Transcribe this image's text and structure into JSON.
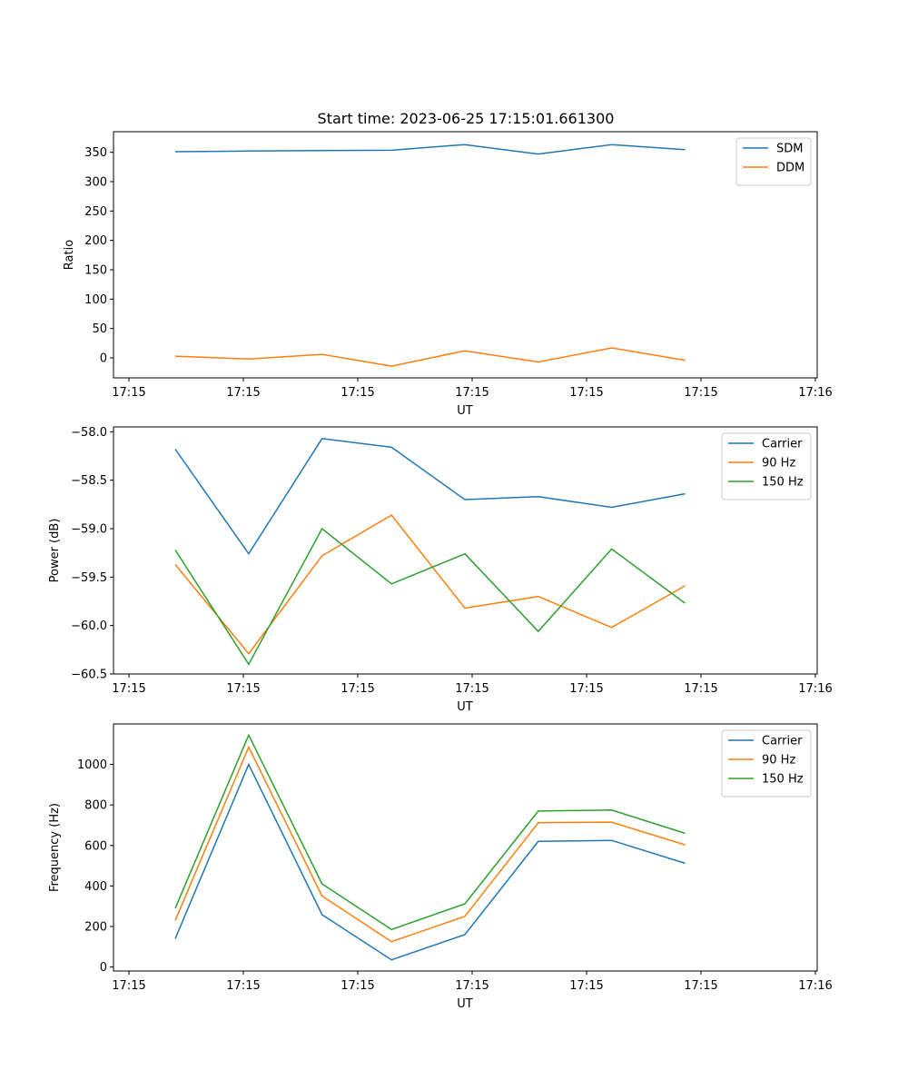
{
  "figure": {
    "title": "Start time: 2023-06-25 17:15:01.661300"
  },
  "chart_data": [
    {
      "type": "line",
      "title": "Start time: 2023-06-25 17:15:01.661300",
      "xlabel": "UT",
      "ylabel": "Ratio",
      "x_tick_labels": [
        "17:15",
        "17:15",
        "17:15",
        "17:15",
        "17:15",
        "17:15",
        "17:16"
      ],
      "y_ticks": [
        0,
        50,
        100,
        150,
        200,
        250,
        300,
        350
      ],
      "ylim": [
        -34,
        385
      ],
      "grid": false,
      "legend_position": "upper right",
      "x": [
        1.15,
        2.1,
        3.05,
        3.95,
        4.9,
        5.85,
        6.8,
        7.75
      ],
      "series": [
        {
          "name": "SDM",
          "color": "#1f77b4",
          "values": [
            351,
            352,
            353,
            353.5,
            363,
            347,
            363,
            354.5
          ]
        },
        {
          "name": "DDM",
          "color": "#ff7f0e",
          "values": [
            3,
            -2,
            6,
            -14,
            12,
            -7,
            17,
            -4
          ]
        }
      ]
    },
    {
      "type": "line",
      "xlabel": "UT",
      "ylabel": "Power (dB)",
      "x_tick_labels": [
        "17:15",
        "17:15",
        "17:15",
        "17:15",
        "17:15",
        "17:15",
        "17:16"
      ],
      "y_ticks": [
        -58.0,
        -58.5,
        -59.0,
        -59.5,
        -60.0,
        -60.5
      ],
      "y_tick_labels": [
        "−58.0",
        "−58.5",
        "−59.0",
        "−59.5",
        "−60.0",
        "−60.5"
      ],
      "ylim": [
        -60.5,
        -57.95
      ],
      "grid": false,
      "legend_position": "upper right",
      "x": [
        1.15,
        2.1,
        3.05,
        3.95,
        4.9,
        5.85,
        6.8,
        7.75
      ],
      "series": [
        {
          "name": "Carrier",
          "color": "#1f77b4",
          "values": [
            -58.18,
            -59.26,
            -58.07,
            -58.16,
            -58.7,
            -58.67,
            -58.78,
            -58.64
          ]
        },
        {
          "name": "90 Hz",
          "color": "#ff7f0e",
          "values": [
            -59.37,
            -60.29,
            -59.28,
            -58.86,
            -59.82,
            -59.7,
            -60.02,
            -59.59
          ]
        },
        {
          "name": "150 Hz",
          "color": "#2ca02c",
          "values": [
            -59.22,
            -60.4,
            -59.0,
            -59.57,
            -59.26,
            -60.06,
            -59.21,
            -59.77
          ]
        }
      ]
    },
    {
      "type": "line",
      "xlabel": "UT",
      "ylabel": "Frequency (Hz)",
      "x_tick_labels": [
        "17:15",
        "17:15",
        "17:15",
        "17:15",
        "17:15",
        "17:15",
        "17:16"
      ],
      "y_ticks": [
        0,
        200,
        400,
        600,
        800,
        1000
      ],
      "ylim": [
        -20,
        1200
      ],
      "grid": false,
      "legend_position": "upper right",
      "x": [
        1.15,
        2.1,
        3.05,
        3.95,
        4.9,
        5.85,
        6.8,
        7.75
      ],
      "series": [
        {
          "name": "Carrier",
          "color": "#1f77b4",
          "values": [
            140,
            1000,
            258,
            35,
            160,
            620,
            625,
            512
          ]
        },
        {
          "name": "90 Hz",
          "color": "#ff7f0e",
          "values": [
            230,
            1085,
            350,
            125,
            250,
            712,
            715,
            603
          ]
        },
        {
          "name": "150 Hz",
          "color": "#2ca02c",
          "values": [
            290,
            1145,
            410,
            185,
            312,
            770,
            775,
            660
          ]
        }
      ]
    }
  ]
}
